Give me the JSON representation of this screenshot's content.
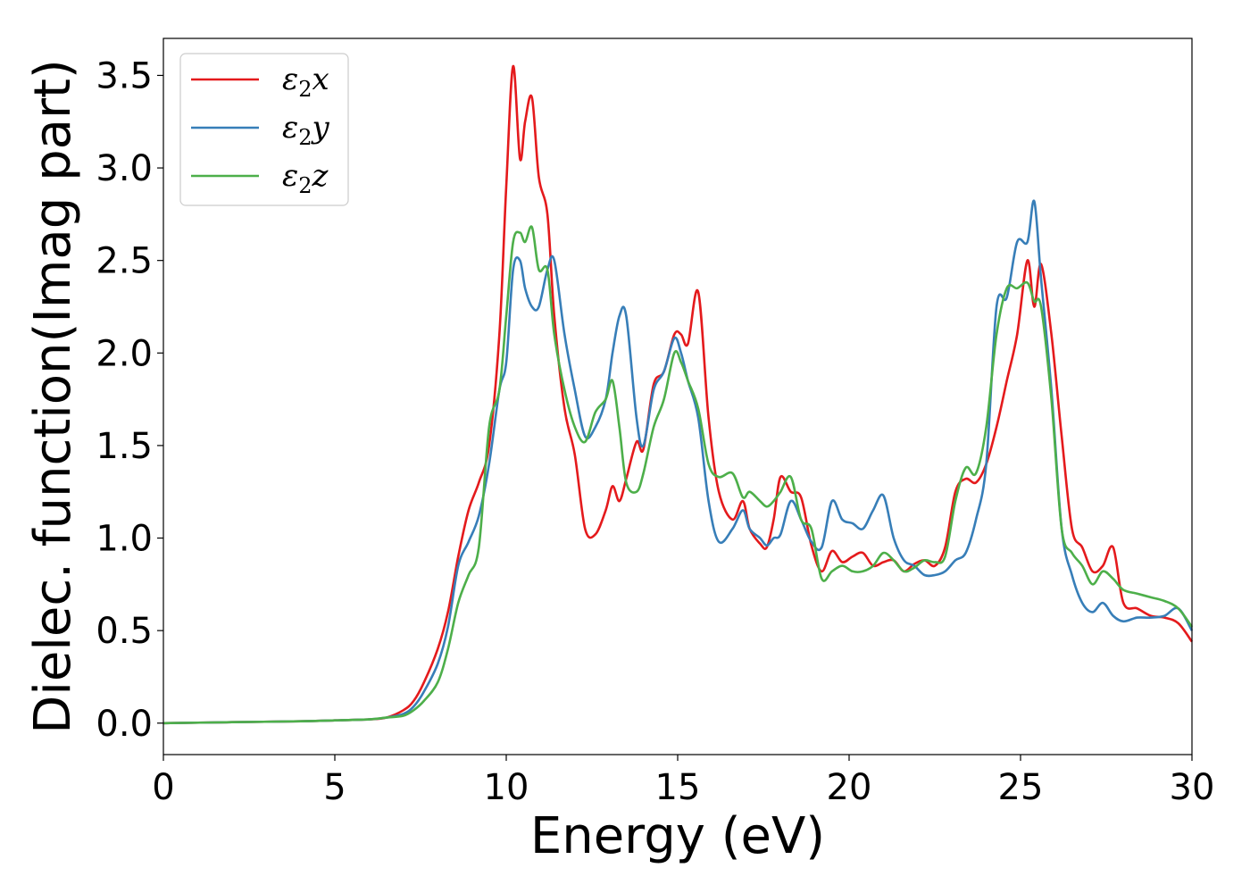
{
  "chart_data": {
    "type": "line",
    "xlabel": "Energy (eV)",
    "ylabel": "Dielec. function(Imag part)",
    "xlim": [
      0,
      30
    ],
    "ylim": [
      -0.17,
      3.7
    ],
    "xticks": [
      0,
      5,
      10,
      15,
      20,
      25,
      30
    ],
    "xtick_labels": [
      "0",
      "5",
      "10",
      "15",
      "20",
      "25",
      "30"
    ],
    "yticks": [
      0.0,
      0.5,
      1.0,
      1.5,
      2.0,
      2.5,
      3.0,
      3.5
    ],
    "ytick_labels": [
      "0.0",
      "0.5",
      "1.0",
      "1.5",
      "2.0",
      "2.5",
      "3.0",
      "3.5"
    ],
    "grid": false,
    "legend_position": "top-left",
    "series": [
      {
        "name": "ε₂x",
        "legend_base": "ε",
        "legend_sub": "2",
        "legend_var": "x",
        "color": "#e41a1c",
        "x": [
          0,
          2,
          4,
          5,
          6,
          6.5,
          7,
          7.3,
          7.6,
          8,
          8.3,
          8.6,
          8.9,
          9.2,
          9.5,
          9.8,
          10.0,
          10.2,
          10.4,
          10.55,
          10.75,
          10.95,
          11.2,
          11.4,
          11.7,
          12.0,
          12.3,
          12.6,
          12.9,
          13.1,
          13.3,
          13.5,
          13.8,
          14.0,
          14.3,
          14.6,
          14.9,
          15.1,
          15.3,
          15.6,
          15.9,
          16.2,
          16.6,
          16.9,
          17.1,
          17.4,
          17.6,
          17.8,
          18.0,
          18.3,
          18.6,
          18.9,
          19.2,
          19.5,
          19.8,
          20.1,
          20.4,
          20.7,
          21.0,
          21.3,
          21.6,
          21.9,
          22.2,
          22.5,
          22.8,
          23.1,
          23.4,
          23.7,
          24.0,
          24.3,
          24.6,
          24.9,
          25.2,
          25.4,
          25.6,
          25.9,
          26.2,
          26.5,
          26.8,
          27.1,
          27.4,
          27.7,
          28.0,
          28.4,
          28.8,
          29.2,
          29.6,
          30
        ],
        "y": [
          0,
          0.005,
          0.01,
          0.015,
          0.02,
          0.03,
          0.07,
          0.12,
          0.22,
          0.4,
          0.6,
          0.9,
          1.15,
          1.3,
          1.5,
          2.1,
          2.9,
          3.55,
          3.05,
          3.25,
          3.38,
          2.95,
          2.75,
          2.2,
          1.7,
          1.45,
          1.05,
          1.02,
          1.15,
          1.28,
          1.2,
          1.32,
          1.52,
          1.48,
          1.83,
          1.9,
          2.1,
          2.1,
          2.05,
          2.33,
          1.65,
          1.25,
          1.1,
          1.2,
          1.05,
          0.97,
          0.95,
          1.1,
          1.33,
          1.25,
          1.22,
          0.96,
          0.82,
          0.93,
          0.87,
          0.9,
          0.92,
          0.85,
          0.87,
          0.88,
          0.82,
          0.86,
          0.88,
          0.85,
          0.95,
          1.25,
          1.32,
          1.3,
          1.4,
          1.6,
          1.85,
          2.1,
          2.5,
          2.25,
          2.48,
          2.1,
          1.55,
          1.05,
          0.95,
          0.82,
          0.85,
          0.95,
          0.65,
          0.62,
          0.58,
          0.57,
          0.54,
          0.44
        ]
      },
      {
        "name": "ε₂y",
        "legend_base": "ε",
        "legend_sub": "2",
        "legend_var": "y",
        "color": "#377eb8",
        "x": [
          0,
          2,
          4,
          5,
          6,
          6.5,
          7,
          7.3,
          7.6,
          8,
          8.3,
          8.6,
          8.9,
          9.2,
          9.5,
          9.8,
          10.0,
          10.2,
          10.4,
          10.55,
          10.75,
          10.95,
          11.2,
          11.4,
          11.7,
          12.0,
          12.3,
          12.6,
          12.9,
          13.1,
          13.3,
          13.5,
          13.8,
          14.0,
          14.3,
          14.6,
          14.9,
          15.1,
          15.3,
          15.6,
          15.9,
          16.2,
          16.6,
          16.9,
          17.1,
          17.4,
          17.6,
          17.8,
          18.0,
          18.3,
          18.6,
          18.9,
          19.2,
          19.5,
          19.8,
          20.1,
          20.4,
          20.7,
          21.0,
          21.3,
          21.6,
          21.9,
          22.2,
          22.5,
          22.8,
          23.1,
          23.4,
          23.7,
          24.0,
          24.3,
          24.6,
          24.9,
          25.2,
          25.4,
          25.6,
          25.9,
          26.2,
          26.5,
          26.8,
          27.1,
          27.4,
          27.7,
          28.0,
          28.4,
          28.8,
          29.2,
          29.6,
          30
        ],
        "y": [
          0,
          0.005,
          0.01,
          0.015,
          0.02,
          0.03,
          0.05,
          0.09,
          0.17,
          0.32,
          0.52,
          0.85,
          0.98,
          1.12,
          1.4,
          1.8,
          1.95,
          2.45,
          2.5,
          2.35,
          2.25,
          2.25,
          2.45,
          2.5,
          2.1,
          1.8,
          1.55,
          1.6,
          1.75,
          2.0,
          2.2,
          2.2,
          1.65,
          1.5,
          1.8,
          1.9,
          2.08,
          2.0,
          1.85,
          1.65,
          1.2,
          0.98,
          1.05,
          1.15,
          1.05,
          1.0,
          0.96,
          1.0,
          1.02,
          1.2,
          1.1,
          0.98,
          0.95,
          1.2,
          1.1,
          1.08,
          1.05,
          1.15,
          1.23,
          1.0,
          0.88,
          0.85,
          0.8,
          0.8,
          0.82,
          0.88,
          0.92,
          1.1,
          1.4,
          2.25,
          2.3,
          2.6,
          2.6,
          2.82,
          2.4,
          1.8,
          1.05,
          0.8,
          0.65,
          0.6,
          0.65,
          0.58,
          0.55,
          0.57,
          0.57,
          0.58,
          0.62,
          0.5
        ]
      },
      {
        "name": "ε₂z",
        "legend_base": "ε",
        "legend_sub": "2",
        "legend_var": "z",
        "color": "#4daf4a",
        "x": [
          0,
          2,
          4,
          5,
          6,
          6.5,
          7,
          7.3,
          7.6,
          8,
          8.3,
          8.6,
          8.9,
          9.2,
          9.5,
          9.8,
          10.0,
          10.2,
          10.4,
          10.55,
          10.75,
          10.95,
          11.2,
          11.4,
          11.7,
          12.0,
          12.3,
          12.6,
          12.9,
          13.1,
          13.3,
          13.5,
          13.8,
          14.0,
          14.3,
          14.6,
          14.9,
          15.1,
          15.3,
          15.6,
          15.9,
          16.2,
          16.6,
          16.9,
          17.1,
          17.4,
          17.6,
          17.8,
          18.0,
          18.3,
          18.6,
          18.9,
          19.2,
          19.5,
          19.8,
          20.1,
          20.4,
          20.7,
          21.0,
          21.3,
          21.6,
          21.9,
          22.2,
          22.5,
          22.8,
          23.1,
          23.4,
          23.7,
          24.0,
          24.3,
          24.6,
          24.9,
          25.2,
          25.4,
          25.6,
          25.9,
          26.2,
          26.5,
          26.8,
          27.1,
          27.4,
          27.7,
          28.0,
          28.4,
          28.8,
          29.2,
          29.6,
          30
        ],
        "y": [
          0,
          0.005,
          0.01,
          0.015,
          0.02,
          0.03,
          0.04,
          0.07,
          0.12,
          0.22,
          0.4,
          0.65,
          0.8,
          0.95,
          1.6,
          1.8,
          2.2,
          2.6,
          2.65,
          2.6,
          2.68,
          2.45,
          2.45,
          2.1,
          1.8,
          1.6,
          1.52,
          1.68,
          1.75,
          1.85,
          1.6,
          1.3,
          1.25,
          1.35,
          1.6,
          1.75,
          2.0,
          1.95,
          1.85,
          1.7,
          1.4,
          1.33,
          1.35,
          1.22,
          1.25,
          1.2,
          1.17,
          1.2,
          1.25,
          1.33,
          1.1,
          1.05,
          0.78,
          0.82,
          0.85,
          0.82,
          0.82,
          0.85,
          0.92,
          0.88,
          0.82,
          0.84,
          0.88,
          0.87,
          0.9,
          1.2,
          1.38,
          1.35,
          1.6,
          2.1,
          2.35,
          2.35,
          2.38,
          2.28,
          2.25,
          1.75,
          1.05,
          0.92,
          0.85,
          0.75,
          0.82,
          0.78,
          0.72,
          0.7,
          0.68,
          0.66,
          0.62,
          0.52
        ]
      }
    ]
  }
}
